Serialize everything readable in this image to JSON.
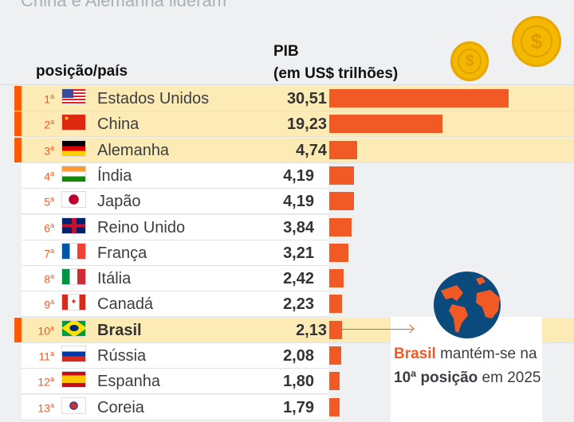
{
  "subtitle": "China e Alemanha lideram",
  "header": {
    "position_country": "posição/país",
    "gdp_line1": "PIB",
    "gdp_line2": "(em US$ trilhões)"
  },
  "colors": {
    "bar": "#f15a24",
    "highlight": "#fdebb5",
    "accent": "#ff5a00"
  },
  "chart_data": {
    "type": "bar",
    "orientation": "horizontal",
    "xlabel": "PIB (em US$ trilhões)",
    "categories": [
      "Estados Unidos",
      "China",
      "Alemanha",
      "Índia",
      "Japão",
      "Reino Unido",
      "França",
      "Itália",
      "Canadá",
      "Brasil",
      "Rússia",
      "Espanha",
      "Coreia"
    ],
    "positions": [
      "1",
      "2",
      "3",
      "4",
      "5",
      "6",
      "7",
      "8",
      "9",
      "10",
      "11",
      "12",
      "13"
    ],
    "value_labels": [
      "30,51",
      "19,23",
      "4,74",
      "4,19",
      "4,19",
      "3,84",
      "3,21",
      "2,42",
      "2,23",
      "2,13",
      "2,08",
      "1,80",
      "1,79"
    ],
    "values": [
      30.51,
      19.23,
      4.74,
      4.19,
      4.19,
      3.84,
      3.21,
      2.42,
      2.23,
      2.13,
      2.08,
      1.8,
      1.79
    ],
    "highlighted": [
      "Estados Unidos",
      "China",
      "Alemanha",
      "Brasil"
    ],
    "flags": [
      "us-flag",
      "cn-flag",
      "de-flag",
      "in-flag",
      "jp-flag",
      "gb-flag",
      "fr-flag",
      "it-flag",
      "ca-flag",
      "br-flag",
      "ru-flag",
      "es-flag",
      "kr-flag"
    ]
  },
  "callout": {
    "brand": "Brasil",
    "text1": " mantém-se na ",
    "bold": "10ª posição",
    "text2": " em 2025"
  }
}
